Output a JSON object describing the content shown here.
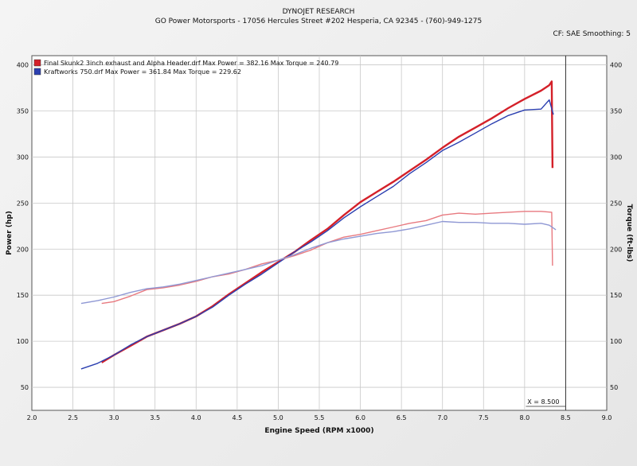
{
  "header": {
    "company": "DYNOJET RESEARCH",
    "address": "GO Power Motorsports - 17056 Hercules Street #202 Hesperia, CA 92345 - (760)-949-1275",
    "settings": "CF: SAE   Smoothing: 5"
  },
  "colors": {
    "red": "#d42029",
    "red_light": "#e87a80",
    "blue": "#2b3fb0",
    "blue_light": "#8f98d4",
    "grid": "#c8c8c8"
  },
  "chart_data": {
    "type": "line",
    "xlabel": "Engine Speed (RPM x1000)",
    "ylabel_left": "Power (hp)",
    "ylabel_right": "Torque (ft-lbs)",
    "xlim": [
      2.0,
      9.0
    ],
    "ylim": [
      25,
      410
    ],
    "x_ticks": [
      "2.0",
      "2.5",
      "3.0",
      "3.5",
      "4.0",
      "4.5",
      "5.0",
      "5.5",
      "6.0",
      "6.5",
      "7.0",
      "7.5",
      "8.0",
      "8.5",
      "9.0"
    ],
    "y_ticks": [
      "50",
      "100",
      "150",
      "200",
      "250",
      "300",
      "350",
      "400"
    ],
    "grid": true,
    "legend_position": "top-left",
    "cursor": {
      "x": 8.5,
      "label": "X = 8.500"
    },
    "legend": [
      {
        "label": "Final Skunk2 3inch exhaust and Alpha Header.drf Max Power = 382.16 Max Torque = 240.79",
        "color": "#d42029"
      },
      {
        "label": "Kraftworks 750.drf Max Power = 361.84 Max Torque = 229.62",
        "color": "#2b3fb0"
      }
    ],
    "series": [
      {
        "name": "Final Skunk2 3inch exhaust and Alpha Header.drf",
        "metric": "power",
        "color": "#d42029",
        "x": [
          2.85,
          3.0,
          3.2,
          3.4,
          3.6,
          3.8,
          4.0,
          4.2,
          4.4,
          4.6,
          4.8,
          5.0,
          5.2,
          5.4,
          5.6,
          5.8,
          6.0,
          6.2,
          6.4,
          6.6,
          6.8,
          7.0,
          7.2,
          7.4,
          7.6,
          7.8,
          8.0,
          8.2,
          8.3,
          8.33,
          8.34
        ],
        "values": [
          77,
          85,
          95,
          105,
          112,
          119,
          127,
          138,
          151,
          163,
          175,
          186,
          197,
          210,
          222,
          237,
          251,
          262,
          273,
          285,
          297,
          310,
          322,
          332,
          342,
          353,
          363,
          372,
          378,
          382,
          288
        ]
      },
      {
        "name": "Kraftworks 750.drf",
        "metric": "power",
        "color": "#2b3fb0",
        "x": [
          2.6,
          2.8,
          3.0,
          3.2,
          3.4,
          3.6,
          3.8,
          4.0,
          4.2,
          4.4,
          4.6,
          4.8,
          5.0,
          5.2,
          5.4,
          5.6,
          5.8,
          6.0,
          6.2,
          6.4,
          6.6,
          6.8,
          7.0,
          7.2,
          7.4,
          7.6,
          7.8,
          8.0,
          8.2,
          8.3,
          8.35
        ],
        "values": [
          70,
          76,
          85,
          96,
          105,
          112,
          119,
          127,
          137,
          150,
          162,
          173,
          185,
          197,
          208,
          220,
          234,
          246,
          257,
          268,
          282,
          294,
          307,
          316,
          326,
          336,
          345,
          351,
          352,
          362,
          346
        ]
      },
      {
        "name": "Final Skunk2 3inch exhaust and Alpha Header.drf",
        "metric": "torque",
        "color": "#e87a80",
        "x": [
          2.85,
          3.0,
          3.2,
          3.4,
          3.6,
          3.8,
          4.0,
          4.2,
          4.4,
          4.6,
          4.8,
          5.0,
          5.2,
          5.4,
          5.6,
          5.8,
          6.0,
          6.2,
          6.4,
          6.6,
          6.8,
          7.0,
          7.2,
          7.4,
          7.6,
          7.8,
          8.0,
          8.2,
          8.33,
          8.34
        ],
        "values": [
          141,
          143,
          149,
          156,
          158,
          161,
          165,
          170,
          173,
          178,
          184,
          188,
          193,
          199,
          207,
          213,
          216,
          220,
          224,
          228,
          231,
          237,
          239,
          238,
          239,
          240,
          241,
          241,
          240,
          182
        ]
      },
      {
        "name": "Kraftworks 750.drf",
        "metric": "torque",
        "color": "#8f98d4",
        "x": [
          2.6,
          2.8,
          3.0,
          3.2,
          3.4,
          3.6,
          3.8,
          4.0,
          4.2,
          4.4,
          4.6,
          4.8,
          5.0,
          5.2,
          5.4,
          5.6,
          5.8,
          6.0,
          6.2,
          6.4,
          6.6,
          6.8,
          7.0,
          7.2,
          7.4,
          7.6,
          7.8,
          8.0,
          8.2,
          8.3,
          8.38
        ],
        "values": [
          141,
          144,
          148,
          153,
          157,
          159,
          162,
          166,
          170,
          174,
          178,
          182,
          188,
          194,
          201,
          207,
          211,
          214,
          217,
          219,
          222,
          226,
          230,
          229,
          229,
          228,
          228,
          227,
          228,
          226,
          221
        ]
      }
    ]
  }
}
